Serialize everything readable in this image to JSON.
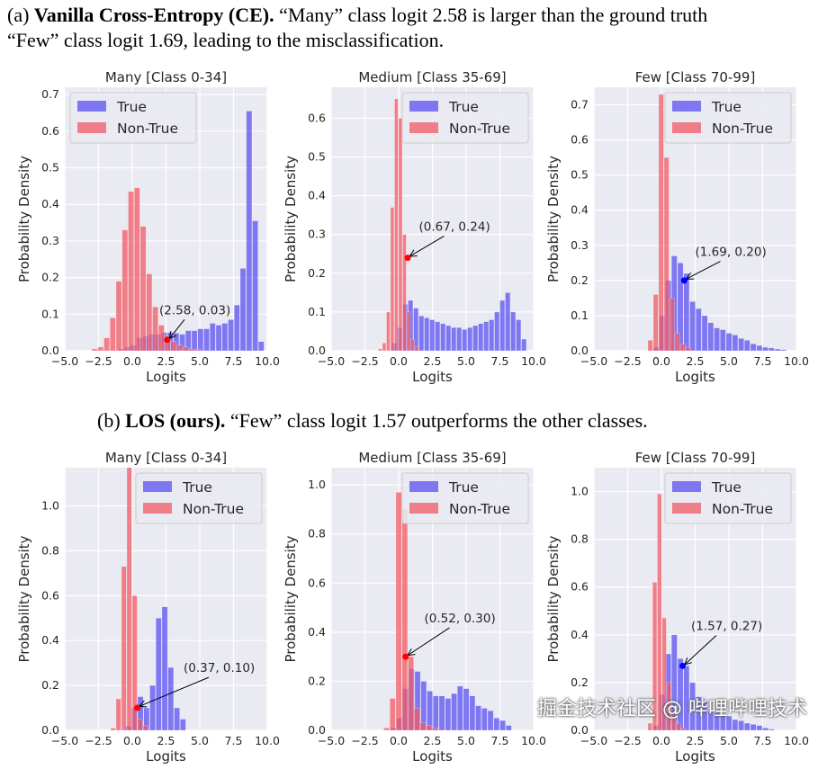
{
  "caption_a": {
    "label": "(a) ",
    "bold": "Vanilla Cross-Entropy (CE).",
    "text1": " “Many” class logit 2.58 is larger than the ground truth",
    "text2": "“Few” class logit 1.69, leading to the misclassification."
  },
  "caption_b": {
    "label": "(b) ",
    "bold": "LOS (ours).",
    "text": " “Few” class logit 1.57 outperforms the other classes."
  },
  "watermark": "掘金技术社区 @ 哔哩哔哩技术",
  "colors": {
    "true": "#5a50f0",
    "non_true": "#f05a64",
    "axes_bg": "#eaeaf2"
  },
  "chart_data": [
    {
      "type": "bar",
      "title": "Many [Class 0-34]",
      "xlabel": "Logits",
      "ylabel": "Probability Density",
      "xlim": [
        -5,
        10
      ],
      "ylim": [
        0,
        0.72
      ],
      "xticks": [
        "−5.0",
        "−2.5",
        "0.0",
        "2.5",
        "5.0",
        "7.5",
        "10.0"
      ],
      "yticks": [
        0,
        0.1,
        0.2,
        0.3,
        0.4,
        0.5,
        0.6,
        0.7
      ],
      "yfmt": 1,
      "legend": [
        "True",
        "Non-True"
      ],
      "legend_pos": "top-left",
      "nontrue": {
        "start": -3.0,
        "width": 0.45,
        "values": [
          0.005,
          0.01,
          0.035,
          0.09,
          0.19,
          0.33,
          0.435,
          0.445,
          0.34,
          0.21,
          0.12,
          0.07,
          0.04,
          0.025,
          0.015,
          0.01,
          0.005,
          0.003
        ]
      },
      "true": {
        "start": -1.0,
        "width": 0.45,
        "values": [
          0.005,
          0.01,
          0.015,
          0.035,
          0.04,
          0.045,
          0.045,
          0.05,
          0.05,
          0.048,
          0.045,
          0.055,
          0.055,
          0.06,
          0.06,
          0.075,
          0.07,
          0.075,
          0.085,
          0.125,
          0.225,
          0.655,
          0.355,
          0.025
        ]
      },
      "annotation": {
        "text": "(2.58, 0.03)",
        "point": [
          2.58,
          0.03
        ],
        "text_at": [
          2.0,
          0.1
        ],
        "color": "red"
      }
    },
    {
      "type": "bar",
      "title": "Medium [Class 35-69]",
      "xlabel": "Logits",
      "ylabel": "Probability Density",
      "xlim": [
        -5,
        10
      ],
      "ylim": [
        0,
        0.68
      ],
      "xticks": [
        "−5.0",
        "−2.5",
        "0.0",
        "2.5",
        "5.0",
        "7.5",
        "10.0"
      ],
      "yticks": [
        0,
        0.1,
        0.2,
        0.3,
        0.4,
        0.5,
        0.6
      ],
      "yfmt": 1,
      "legend": [
        "True",
        "Non-True"
      ],
      "legend_pos": "top-right",
      "nontrue": {
        "start": -1.5,
        "width": 0.3,
        "values": [
          0.005,
          0.02,
          0.1,
          0.37,
          0.65,
          0.6,
          0.3,
          0.1,
          0.03,
          0.01
        ]
      },
      "true": {
        "start": -0.5,
        "width": 0.4,
        "values": [
          0.02,
          0.06,
          0.12,
          0.13,
          0.11,
          0.09,
          0.085,
          0.08,
          0.075,
          0.07,
          0.065,
          0.06,
          0.06,
          0.055,
          0.06,
          0.065,
          0.07,
          0.075,
          0.08,
          0.1,
          0.13,
          0.15,
          0.1,
          0.08,
          0.03
        ]
      },
      "annotation": {
        "text": "(0.67, 0.24)",
        "point": [
          0.67,
          0.24
        ],
        "text_at": [
          1.5,
          0.31
        ],
        "color": "red"
      }
    },
    {
      "type": "bar",
      "title": "Few [Class 70-99]",
      "xlabel": "Logits",
      "ylabel": "Probability Density",
      "xlim": [
        -5,
        10
      ],
      "ylim": [
        0,
        0.75
      ],
      "xticks": [
        "−5.0",
        "−2.5",
        "0.0",
        "2.5",
        "5.0",
        "7.5",
        "10.0"
      ],
      "yticks": [
        0,
        0.1,
        0.2,
        0.3,
        0.4,
        0.5,
        0.6,
        0.7
      ],
      "yfmt": 1,
      "legend": [
        "True",
        "Non-True"
      ],
      "legend_pos": "top-right",
      "nontrue": {
        "start": -1.0,
        "width": 0.4,
        "values": [
          0.03,
          0.16,
          0.73,
          0.55,
          0.15,
          0.05,
          0.02,
          0.01
        ]
      },
      "true": {
        "start": -0.6,
        "width": 0.45,
        "values": [
          0.01,
          0.1,
          0.2,
          0.27,
          0.25,
          0.22,
          0.14,
          0.12,
          0.1,
          0.08,
          0.065,
          0.06,
          0.05,
          0.045,
          0.035,
          0.03,
          0.02,
          0.015,
          0.01,
          0.008,
          0.005,
          0.003
        ]
      },
      "annotation": {
        "text": "(1.69, 0.20)",
        "point": [
          1.69,
          0.2
        ],
        "text_at": [
          2.5,
          0.27
        ],
        "color": "blue"
      }
    },
    {
      "type": "bar",
      "title": "Many [Class 0-34]",
      "xlabel": "Logits",
      "ylabel": "Probability Density",
      "xlim": [
        -5,
        10
      ],
      "ylim": [
        0,
        1.17
      ],
      "xticks": [
        "−5.0",
        "−2.5",
        "0.0",
        "2.5",
        "5.0",
        "7.5",
        "10.0"
      ],
      "yticks": [
        0,
        0.2,
        0.4,
        0.6,
        0.8,
        1.0
      ],
      "yfmt": 1,
      "legend": [
        "True",
        "Non-True"
      ],
      "legend_pos": "top-right",
      "nontrue": {
        "start": -1.6,
        "width": 0.4,
        "values": [
          0.01,
          0.14,
          0.73,
          1.2,
          0.6,
          0.05,
          0.02
        ]
      },
      "true": {
        "start": -0.5,
        "width": 0.45,
        "values": [
          0.02,
          0.1,
          0.15,
          0.1,
          0.2,
          0.5,
          0.55,
          0.28,
          0.1,
          0.05
        ]
      },
      "annotation": {
        "text": "(0.37, 0.10)",
        "point": [
          0.37,
          0.1
        ],
        "text_at": [
          3.8,
          0.26
        ],
        "color": "red"
      }
    },
    {
      "type": "bar",
      "title": "Medium [Class 35-69]",
      "xlabel": "Logits",
      "ylabel": "Probability Density",
      "xlim": [
        -5,
        10
      ],
      "ylim": [
        0,
        1.07
      ],
      "xticks": [
        "−5.0",
        "−2.5",
        "0.0",
        "2.5",
        "5.0",
        "7.5",
        "10.0"
      ],
      "yticks": [
        0,
        0.2,
        0.4,
        0.6,
        0.8,
        1.0
      ],
      "yfmt": 1,
      "legend": [
        "True",
        "Non-True"
      ],
      "legend_pos": "top-right",
      "nontrue": {
        "start": -1.1,
        "width": 0.45,
        "values": [
          0.01,
          0.13,
          0.97,
          0.9,
          0.3,
          0.09,
          0.03,
          0.02,
          0.01
        ]
      },
      "true": {
        "start": -0.6,
        "width": 0.45,
        "values": [
          0.01,
          0.05,
          0.17,
          0.25,
          0.24,
          0.2,
          0.16,
          0.14,
          0.14,
          0.13,
          0.15,
          0.18,
          0.17,
          0.14,
          0.1,
          0.09,
          0.08,
          0.05,
          0.04,
          0.02
        ]
      },
      "annotation": {
        "text": "(0.52, 0.30)",
        "point": [
          0.52,
          0.3
        ],
        "text_at": [
          1.9,
          0.44
        ],
        "color": "red"
      }
    },
    {
      "type": "bar",
      "title": "Few [Class 70-99]",
      "xlabel": "Logits",
      "ylabel": "Probability Density",
      "xlim": [
        -5,
        10
      ],
      "ylim": [
        0,
        1.1
      ],
      "xticks": [
        "−5.0",
        "−2.5",
        "0.0",
        "2.5",
        "5.0",
        "7.5",
        "10.0"
      ],
      "yticks": [
        0,
        0.2,
        0.4,
        0.6,
        0.8,
        1.0
      ],
      "yfmt": 1,
      "legend": [
        "True",
        "Non-True"
      ],
      "legend_pos": "top-right",
      "nontrue": {
        "start": -1.0,
        "width": 0.35,
        "values": [
          0.03,
          0.62,
          0.99,
          0.47,
          0.2,
          0.07,
          0.03,
          0.01
        ]
      },
      "true": {
        "start": -0.6,
        "width": 0.45,
        "values": [
          0.02,
          0.15,
          0.32,
          0.4,
          0.3,
          0.27,
          0.2,
          0.14,
          0.12,
          0.08,
          0.075,
          0.065,
          0.06,
          0.045,
          0.04,
          0.03,
          0.025,
          0.02,
          0.01,
          0.005
        ]
      },
      "annotation": {
        "text": "(1.57, 0.27)",
        "point": [
          1.57,
          0.27
        ],
        "text_at": [
          2.2,
          0.42
        ],
        "color": "blue"
      }
    }
  ]
}
